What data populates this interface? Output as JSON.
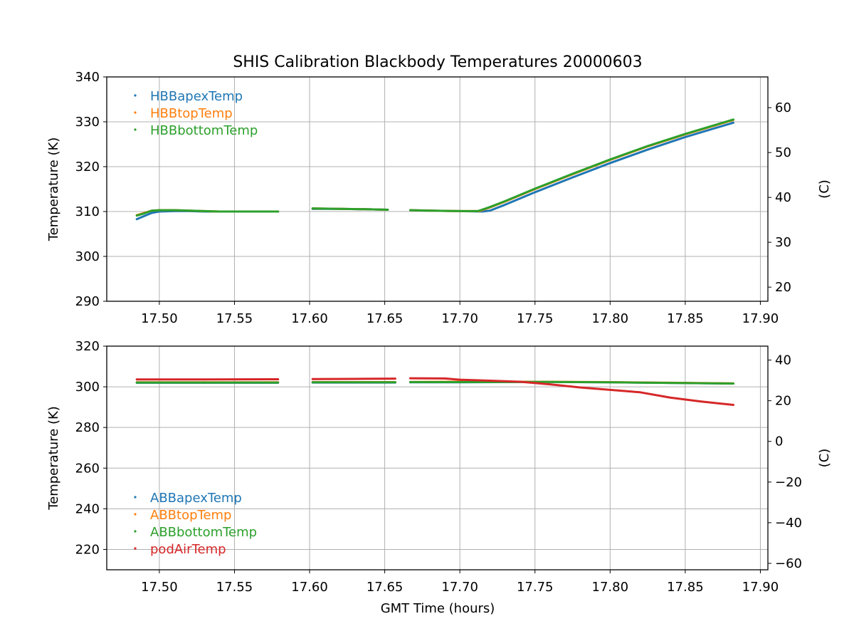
{
  "title": "SHIS Calibration Blackbody Temperatures 20000603",
  "xlabel": "GMT Time (hours)",
  "colors": {
    "blue": "#1f77b4",
    "orange": "#ff7f0e",
    "green": "#2ca02c",
    "red": "#d62728"
  },
  "chart_data": [
    {
      "type": "scatter",
      "ylabel": "Temperature (K)",
      "y2label": "(C)",
      "xlim": [
        17.465,
        17.905
      ],
      "ylim": [
        290,
        340
      ],
      "xticks": [
        17.5,
        17.55,
        17.6,
        17.65,
        17.7,
        17.75,
        17.8,
        17.85,
        17.9
      ],
      "xtick_labels": [
        "17.50",
        "17.55",
        "17.60",
        "17.65",
        "17.70",
        "17.75",
        "17.80",
        "17.85",
        "17.90"
      ],
      "yticks": [
        290,
        300,
        310,
        320,
        330,
        340
      ],
      "ytick_labels": [
        "290",
        "300",
        "310",
        "320",
        "330",
        "340"
      ],
      "y2ticks": [
        20,
        30,
        40,
        50,
        60
      ],
      "y2tick_labels": [
        "20",
        "30",
        "40",
        "50",
        "60"
      ],
      "grid": true,
      "legend_position": "upper-left",
      "series": [
        {
          "name": "HBBapexTemp",
          "color": "#1f77b4",
          "segments": [
            [
              [
                17.485,
                308.3
              ],
              [
                17.49,
                309.0
              ],
              [
                17.495,
                309.7
              ],
              [
                17.5,
                310.0
              ],
              [
                17.51,
                310.1
              ],
              [
                17.52,
                310.1
              ],
              [
                17.53,
                310.0
              ],
              [
                17.54,
                310.0
              ],
              [
                17.56,
                310.0
              ],
              [
                17.579,
                310.0
              ]
            ],
            [
              [
                17.602,
                310.6
              ],
              [
                17.62,
                310.6
              ],
              [
                17.64,
                310.5
              ],
              [
                17.652,
                310.4
              ]
            ],
            [
              [
                17.667,
                310.3
              ],
              [
                17.68,
                310.2
              ],
              [
                17.7,
                310.1
              ],
              [
                17.715,
                310.0
              ],
              [
                17.72,
                310.2
              ],
              [
                17.73,
                311.5
              ],
              [
                17.75,
                314.3
              ],
              [
                17.775,
                317.6
              ],
              [
                17.8,
                320.8
              ],
              [
                17.825,
                323.8
              ],
              [
                17.85,
                326.6
              ],
              [
                17.87,
                328.6
              ],
              [
                17.882,
                329.8
              ]
            ]
          ]
        },
        {
          "name": "HBBtopTemp",
          "color": "#ff7f0e",
          "segments": [
            [
              [
                17.485,
                309.2
              ],
              [
                17.49,
                309.7
              ],
              [
                17.495,
                310.2
              ],
              [
                17.5,
                310.3
              ],
              [
                17.51,
                310.3
              ],
              [
                17.52,
                310.2
              ],
              [
                17.53,
                310.1
              ],
              [
                17.54,
                310.0
              ],
              [
                17.56,
                310.0
              ],
              [
                17.579,
                310.0
              ]
            ],
            [
              [
                17.602,
                310.7
              ],
              [
                17.62,
                310.6
              ],
              [
                17.64,
                310.5
              ],
              [
                17.652,
                310.4
              ]
            ],
            [
              [
                17.667,
                310.3
              ],
              [
                17.68,
                310.2
              ],
              [
                17.7,
                310.1
              ],
              [
                17.713,
                310.1
              ],
              [
                17.72,
                310.9
              ],
              [
                17.73,
                312.2
              ],
              [
                17.75,
                315.0
              ],
              [
                17.775,
                318.3
              ],
              [
                17.8,
                321.5
              ],
              [
                17.825,
                324.5
              ],
              [
                17.85,
                327.2
              ],
              [
                17.87,
                329.2
              ],
              [
                17.882,
                330.4
              ]
            ]
          ]
        },
        {
          "name": "HBBbottomTemp",
          "color": "#2ca02c",
          "segments": [
            [
              [
                17.485,
                309.1
              ],
              [
                17.49,
                309.6
              ],
              [
                17.495,
                310.2
              ],
              [
                17.5,
                310.3
              ],
              [
                17.51,
                310.3
              ],
              [
                17.52,
                310.2
              ],
              [
                17.53,
                310.1
              ],
              [
                17.54,
                310.0
              ],
              [
                17.56,
                310.0
              ],
              [
                17.579,
                310.0
              ]
            ],
            [
              [
                17.602,
                310.7
              ],
              [
                17.62,
                310.6
              ],
              [
                17.64,
                310.5
              ],
              [
                17.652,
                310.4
              ]
            ],
            [
              [
                17.667,
                310.3
              ],
              [
                17.68,
                310.2
              ],
              [
                17.7,
                310.1
              ],
              [
                17.712,
                310.1
              ],
              [
                17.72,
                311.0
              ],
              [
                17.73,
                312.3
              ],
              [
                17.75,
                315.1
              ],
              [
                17.775,
                318.4
              ],
              [
                17.8,
                321.6
              ],
              [
                17.825,
                324.6
              ],
              [
                17.85,
                327.3
              ],
              [
                17.87,
                329.3
              ],
              [
                17.882,
                330.5
              ]
            ]
          ]
        }
      ]
    },
    {
      "type": "scatter",
      "ylabel": "Temperature (K)",
      "y2label": "(C)",
      "xlim": [
        17.465,
        17.905
      ],
      "ylim": [
        210,
        320
      ],
      "xticks": [
        17.5,
        17.55,
        17.6,
        17.65,
        17.7,
        17.75,
        17.8,
        17.85,
        17.9
      ],
      "xtick_labels": [
        "17.50",
        "17.55",
        "17.60",
        "17.65",
        "17.70",
        "17.75",
        "17.80",
        "17.85",
        "17.90"
      ],
      "yticks": [
        220,
        240,
        260,
        280,
        300,
        320
      ],
      "ytick_labels": [
        "220",
        "240",
        "260",
        "280",
        "300",
        "320"
      ],
      "y2ticks": [
        -60,
        -40,
        -20,
        0,
        20,
        40
      ],
      "y2tick_labels": [
        "−60",
        "−40",
        "−20",
        "0",
        "20",
        "40"
      ],
      "grid": true,
      "legend_position": "lower-left",
      "series": [
        {
          "name": "ABBapexTemp",
          "color": "#1f77b4",
          "segments": [
            [
              [
                17.485,
                302.0
              ],
              [
                17.53,
                302.0
              ],
              [
                17.579,
                302.0
              ]
            ],
            [
              [
                17.602,
                302.1
              ],
              [
                17.63,
                302.1
              ],
              [
                17.657,
                302.1
              ]
            ],
            [
              [
                17.667,
                302.2
              ],
              [
                17.7,
                302.2
              ],
              [
                17.75,
                302.4
              ],
              [
                17.8,
                302.2
              ],
              [
                17.84,
                301.9
              ],
              [
                17.882,
                301.6
              ]
            ]
          ]
        },
        {
          "name": "ABBtopTemp",
          "color": "#ff7f0e",
          "segments": [
            [
              [
                17.485,
                302.2
              ],
              [
                17.53,
                302.2
              ],
              [
                17.579,
                302.2
              ]
            ],
            [
              [
                17.602,
                302.3
              ],
              [
                17.63,
                302.3
              ],
              [
                17.657,
                302.3
              ]
            ],
            [
              [
                17.667,
                302.4
              ],
              [
                17.7,
                302.5
              ],
              [
                17.75,
                302.5
              ],
              [
                17.8,
                302.3
              ],
              [
                17.84,
                302.0
              ],
              [
                17.882,
                301.7
              ]
            ]
          ]
        },
        {
          "name": "ABBbottomTemp",
          "color": "#2ca02c",
          "segments": [
            [
              [
                17.485,
                302.1
              ],
              [
                17.53,
                302.1
              ],
              [
                17.579,
                302.1
              ]
            ],
            [
              [
                17.602,
                302.2
              ],
              [
                17.63,
                302.2
              ],
              [
                17.657,
                302.2
              ]
            ],
            [
              [
                17.667,
                302.3
              ],
              [
                17.7,
                302.3
              ],
              [
                17.75,
                302.4
              ],
              [
                17.8,
                302.2
              ],
              [
                17.84,
                301.9
              ],
              [
                17.882,
                301.6
              ]
            ]
          ]
        },
        {
          "name": "podAirTemp",
          "color": "#d62728",
          "segments": [
            [
              [
                17.485,
                303.6
              ],
              [
                17.53,
                303.6
              ],
              [
                17.579,
                303.7
              ]
            ],
            [
              [
                17.602,
                303.8
              ],
              [
                17.63,
                303.9
              ],
              [
                17.657,
                304.0
              ]
            ],
            [
              [
                17.667,
                304.2
              ],
              [
                17.69,
                304.1
              ],
              [
                17.7,
                303.5
              ],
              [
                17.72,
                303.0
              ],
              [
                17.74,
                302.5
              ],
              [
                17.76,
                301.2
              ],
              [
                17.78,
                299.7
              ],
              [
                17.8,
                298.5
              ],
              [
                17.82,
                297.3
              ],
              [
                17.84,
                294.7
              ],
              [
                17.86,
                292.8
              ],
              [
                17.882,
                291.1
              ]
            ]
          ]
        }
      ]
    }
  ]
}
